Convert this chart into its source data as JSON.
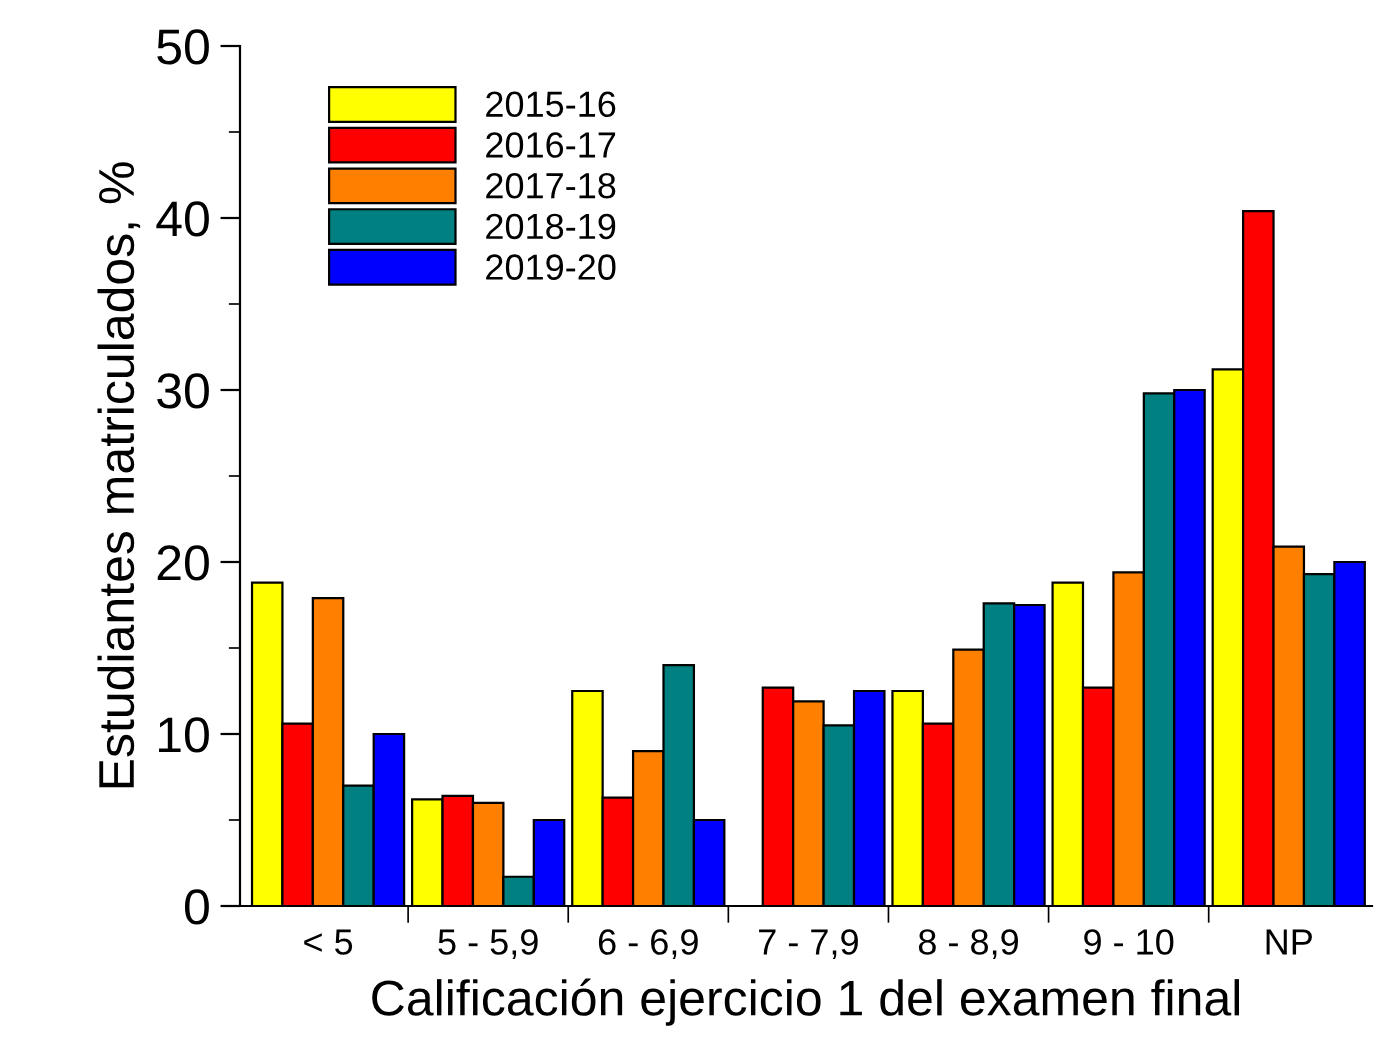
{
  "chart_data": {
    "type": "bar",
    "xlabel": "Calificación ejercicio 1 del examen final",
    "ylabel": "Estudiantes matriculados, %",
    "categories": [
      "< 5",
      "5 - 5,9",
      "6 - 6,9",
      "7 - 7,9",
      "8 - 8,9",
      "9 - 10",
      "NP"
    ],
    "series": [
      {
        "name": "2015-16",
        "color": "#ffff00",
        "values": [
          18.8,
          6.2,
          12.5,
          null,
          12.5,
          18.8,
          31.2
        ]
      },
      {
        "name": "2016-17",
        "color": "#ff0000",
        "values": [
          10.6,
          6.4,
          6.3,
          12.7,
          10.6,
          12.7,
          40.4
        ]
      },
      {
        "name": "2017-18",
        "color": "#ff8000",
        "values": [
          17.9,
          6.0,
          9.0,
          11.9,
          14.9,
          19.4,
          20.9
        ]
      },
      {
        "name": "2018-19",
        "color": "#008080",
        "values": [
          7.0,
          1.7,
          14.0,
          10.5,
          17.6,
          29.8,
          19.3
        ]
      },
      {
        "name": "2019-20",
        "color": "#0000ff",
        "values": [
          10.0,
          5.0,
          5.0,
          12.5,
          17.5,
          30.0,
          20.0
        ]
      }
    ],
    "ylim": [
      0,
      50
    ],
    "yticks": [
      0,
      10,
      20,
      30,
      40,
      50
    ],
    "legend": "top left",
    "grid": false
  }
}
